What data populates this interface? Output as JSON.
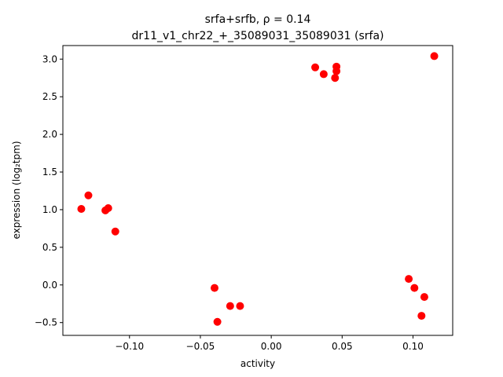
{
  "chart_data": {
    "type": "scatter",
    "title_line1": "srfa+srfb, ρ = 0.14",
    "title_line2": "dr11_v1_chr22_+_35089031_35089031 (srfa)",
    "xlabel": "activity",
    "ylabel": "expression (log₂tpm)",
    "xlim": [
      -0.147,
      0.128
    ],
    "ylim": [
      -0.67,
      3.18
    ],
    "xticks": [
      -0.1,
      -0.05,
      0.0,
      0.05,
      0.1
    ],
    "xtick_labels": [
      "−0.10",
      "−0.05",
      "0.00",
      "0.05",
      "0.10"
    ],
    "yticks": [
      -0.5,
      0.0,
      0.5,
      1.0,
      1.5,
      2.0,
      2.5,
      3.0
    ],
    "ytick_labels": [
      "−0.5",
      "0.0",
      "0.5",
      "1.0",
      "1.5",
      "2.0",
      "2.5",
      "3.0"
    ],
    "grid": false,
    "marker_color": "#ff0000",
    "points": [
      {
        "x": -0.134,
        "y": 1.01
      },
      {
        "x": -0.129,
        "y": 1.19
      },
      {
        "x": -0.117,
        "y": 0.99
      },
      {
        "x": -0.115,
        "y": 1.02
      },
      {
        "x": -0.11,
        "y": 0.71
      },
      {
        "x": -0.04,
        "y": -0.04
      },
      {
        "x": -0.038,
        "y": -0.49
      },
      {
        "x": -0.029,
        "y": -0.28
      },
      {
        "x": -0.022,
        "y": -0.28
      },
      {
        "x": 0.031,
        "y": 2.89
      },
      {
        "x": 0.037,
        "y": 2.8
      },
      {
        "x": 0.045,
        "y": 2.75
      },
      {
        "x": 0.046,
        "y": 2.9
      },
      {
        "x": 0.046,
        "y": 2.84
      },
      {
        "x": 0.097,
        "y": 0.08
      },
      {
        "x": 0.101,
        "y": -0.04
      },
      {
        "x": 0.106,
        "y": -0.41
      },
      {
        "x": 0.108,
        "y": -0.16
      },
      {
        "x": 0.115,
        "y": 3.04
      }
    ]
  }
}
